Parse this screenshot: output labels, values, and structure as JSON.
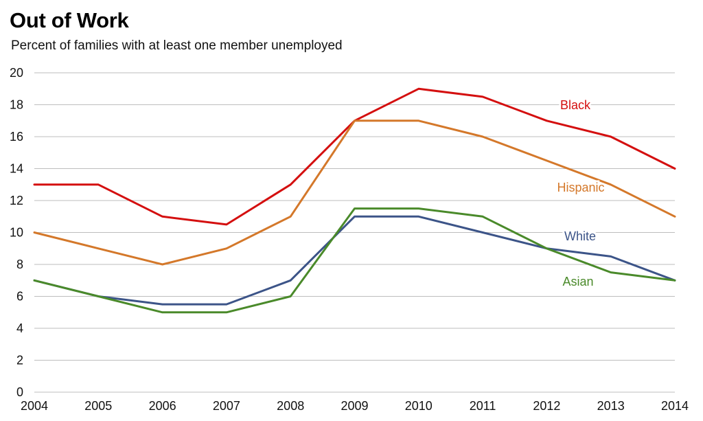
{
  "chart_data": {
    "type": "line",
    "title": "Out of Work",
    "subtitle": "Percent of families with at least one member unemployed",
    "xlabel": "",
    "ylabel": "",
    "x": [
      2004,
      2005,
      2006,
      2007,
      2008,
      2009,
      2010,
      2011,
      2012,
      2013,
      2014
    ],
    "xlim": [
      2004,
      2014
    ],
    "ylim": [
      0,
      20
    ],
    "yticks": [
      0,
      2,
      4,
      6,
      8,
      10,
      12,
      14,
      16,
      18,
      20
    ],
    "grid": "horizontal",
    "legend": "inline labels",
    "series": [
      {
        "name": "Black",
        "color": "#d40f0f",
        "values": [
          13,
          13,
          11,
          10.5,
          13,
          17,
          19,
          18.5,
          17,
          16,
          14
        ]
      },
      {
        "name": "Hispanic",
        "color": "#d4782a",
        "values": [
          10,
          9,
          8,
          9,
          11,
          17,
          17,
          16,
          14.5,
          13,
          11
        ]
      },
      {
        "name": "White",
        "color": "#3c5488",
        "values": [
          7,
          6,
          5.5,
          5.5,
          7,
          11,
          11,
          10,
          9,
          8.5,
          7
        ]
      },
      {
        "name": "Asian",
        "color": "#4a8a2a",
        "values": [
          7,
          6,
          5,
          5,
          6,
          11.5,
          11.5,
          11,
          9,
          7.5,
          7
        ]
      }
    ]
  }
}
